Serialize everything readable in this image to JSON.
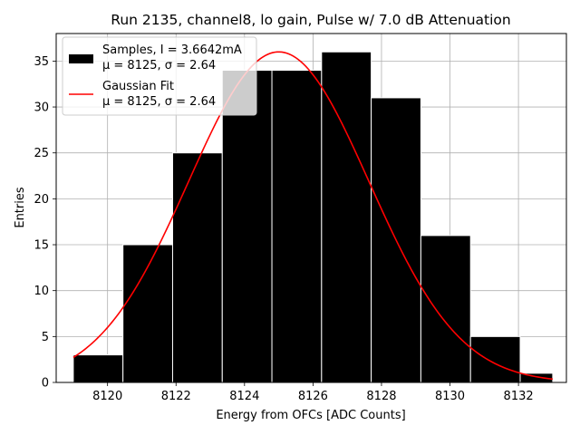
{
  "chart_data": {
    "type": "bar",
    "title": "Run 2135, channel8, lo gain, Pulse w/ 7.0 dB Attenuation",
    "xlabel": "Energy from OFCs [ADC Counts]",
    "ylabel": "Entries",
    "xlim": [
      8118.5,
      8133.4
    ],
    "ylim": [
      0,
      38
    ],
    "xticks": [
      8120,
      8122,
      8124,
      8126,
      8128,
      8130,
      8132
    ],
    "yticks": [
      0,
      5,
      10,
      15,
      20,
      25,
      30,
      35
    ],
    "grid": true,
    "legend_position": "upper-left",
    "histogram": {
      "name": "Samples, I = 3.6642mA",
      "stats": "μ = 8125, σ = 2.64",
      "color": "#000000",
      "edgecolor": "#ffffff",
      "bin_edges": [
        8119.0,
        8120.45,
        8121.9,
        8123.35,
        8124.8,
        8126.25,
        8127.7,
        8129.15,
        8130.6,
        8132.05,
        8133.0
      ],
      "counts": [
        3,
        15,
        25,
        34,
        34,
        36,
        31,
        16,
        5,
        1
      ]
    },
    "fit": {
      "name": "Gaussian Fit",
      "stats": "μ = 8125, σ = 2.64",
      "type": "gaussian",
      "color": "#ff0000",
      "amplitude": 36.0,
      "mean": 8125,
      "sigma": 2.64,
      "x_range": [
        8119.0,
        8133.0
      ]
    }
  }
}
